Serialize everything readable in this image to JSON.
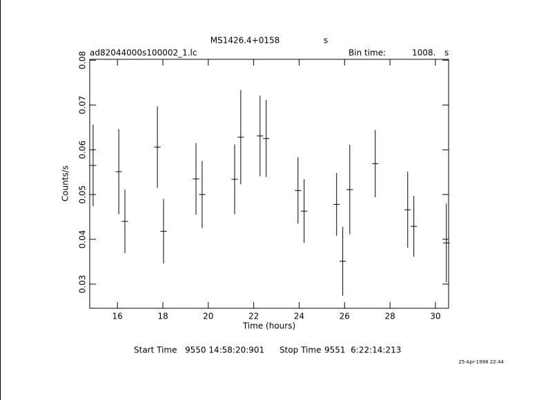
{
  "chart_data": {
    "type": "errorbar",
    "title": "MS1426.4+0158",
    "title_unit": "s",
    "subtitle": "ad82044000s100002_1.lc",
    "bin_time_label": "Bin time:",
    "bin_time": "1008.",
    "bin_time_unit": "s",
    "x_label": "Time (hours)",
    "y_label": "Counts/s",
    "start_label": "Start Time",
    "start_time": "9550 14:58:20:901",
    "stop_label": "Stop Time",
    "stop_time": "9551  6:22:14:213",
    "date": "25-Apr-1998 22:44",
    "color": "#000000",
    "xlim": [
      14.78,
      30.58
    ],
    "ylim": [
      0.0246,
      0.0802
    ],
    "xticks": [
      16,
      18,
      20,
      22,
      24,
      26,
      28,
      30
    ],
    "yticks": [
      0.03,
      0.04,
      0.05,
      0.06,
      0.07,
      0.08
    ],
    "x": [
      14.93,
      16.06,
      16.33,
      17.76,
      18.03,
      19.46,
      19.73,
      21.16,
      21.43,
      22.28,
      22.55,
      23.95,
      24.22,
      25.65,
      25.92,
      26.23,
      27.35,
      28.78,
      29.05,
      30.48
    ],
    "values": [
      0.0565,
      0.0551,
      0.044,
      0.0606,
      0.0418,
      0.0535,
      0.05,
      0.0534,
      0.0628,
      0.0631,
      0.0625,
      0.0509,
      0.0463,
      0.0478,
      0.0351,
      0.0511,
      0.0569,
      0.0466,
      0.0429,
      0.0392
    ],
    "errors": [
      0.0091,
      0.0095,
      0.0071,
      0.0091,
      0.0072,
      0.008,
      0.0075,
      0.0078,
      0.0105,
      0.009,
      0.0086,
      0.0074,
      0.0071,
      0.007,
      0.0077,
      0.01,
      0.0075,
      0.0085,
      0.0068,
      0.0088
    ]
  }
}
